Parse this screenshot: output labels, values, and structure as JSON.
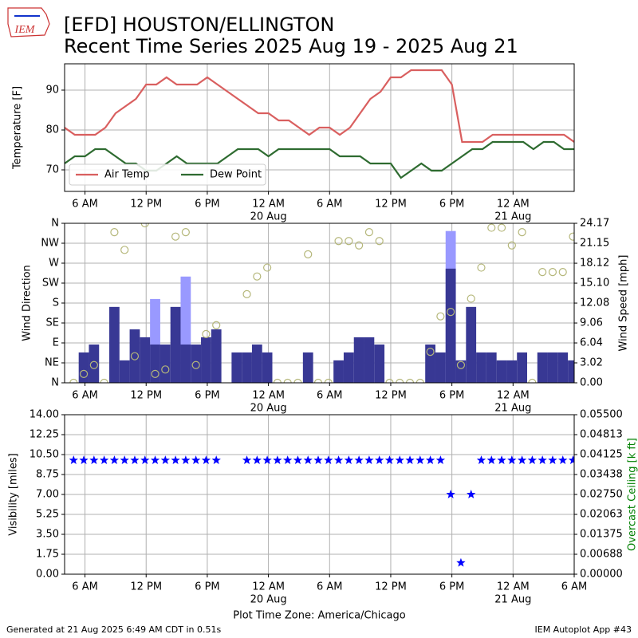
{
  "logo": "IEM",
  "footer": {
    "left": "Generated at 21 Aug 2025 6:49 AM CDT in 0.51s",
    "right": "IEM Autoplot App #43"
  },
  "chart_data": [
    {
      "type": "line",
      "title": "[EFD] HOUSTON/ELLINGTON",
      "subtitle": "Recent Time Series 2025 Aug 19 - 2025 Aug 21",
      "ylabel": "Temperature [F]",
      "grid": true,
      "legend": "lower left",
      "xlim": [
        "2025-08-19T04:00",
        "2025-08-21T06:00"
      ],
      "xticks": [
        {
          "value": "2025-08-19T06:00",
          "label": "6 AM"
        },
        {
          "value": "2025-08-19T12:00",
          "label": "12 PM"
        },
        {
          "value": "2025-08-19T18:00",
          "label": "6 PM"
        },
        {
          "value": "2025-08-20T00:00",
          "label": "12 AM"
        },
        {
          "value": "2025-08-20T06:00",
          "label": "6 AM"
        },
        {
          "value": "2025-08-20T12:00",
          "label": "12 PM"
        },
        {
          "value": "2025-08-20T18:00",
          "label": "6 PM"
        },
        {
          "value": "2025-08-21T00:00",
          "label": "12 AM"
        }
      ],
      "xtick_dates": [
        {
          "value": "2025-08-20T00:00",
          "label": "20 Aug"
        },
        {
          "value": "2025-08-21T00:00",
          "label": "21 Aug"
        }
      ],
      "ylim": [
        64.6,
        96.6
      ],
      "yticks": [
        70,
        80,
        90
      ],
      "x": [
        "2025-08-19T04:00",
        "2025-08-19T05:00",
        "2025-08-19T06:00",
        "2025-08-19T07:00",
        "2025-08-19T08:00",
        "2025-08-19T09:00",
        "2025-08-19T10:00",
        "2025-08-19T11:00",
        "2025-08-19T12:00",
        "2025-08-19T13:00",
        "2025-08-19T14:00",
        "2025-08-19T15:00",
        "2025-08-19T16:00",
        "2025-08-19T17:00",
        "2025-08-19T18:00",
        "2025-08-19T19:00",
        "2025-08-19T20:00",
        "2025-08-19T21:00",
        "2025-08-19T22:00",
        "2025-08-19T23:00",
        "2025-08-20T00:00",
        "2025-08-20T01:00",
        "2025-08-20T02:00",
        "2025-08-20T03:00",
        "2025-08-20T04:00",
        "2025-08-20T05:00",
        "2025-08-20T06:00",
        "2025-08-20T07:00",
        "2025-08-20T08:00",
        "2025-08-20T09:00",
        "2025-08-20T10:00",
        "2025-08-20T11:00",
        "2025-08-20T12:00",
        "2025-08-20T13:00",
        "2025-08-20T14:00",
        "2025-08-20T15:00",
        "2025-08-20T16:00",
        "2025-08-20T17:00",
        "2025-08-20T18:00",
        "2025-08-20T19:00",
        "2025-08-20T20:00",
        "2025-08-20T21:00",
        "2025-08-20T22:00",
        "2025-08-20T23:00",
        "2025-08-21T00:00",
        "2025-08-21T01:00",
        "2025-08-21T02:00",
        "2025-08-21T03:00",
        "2025-08-21T04:00",
        "2025-08-21T05:00",
        "2025-08-21T06:00"
      ],
      "series": [
        {
          "name": "Air Temp",
          "color": "#d95f5f",
          "values": [
            80.6,
            78.8,
            78.8,
            78.8,
            80.6,
            84.2,
            86,
            87.8,
            91.4,
            91.4,
            93.2,
            91.4,
            91.4,
            91.4,
            93.2,
            91.4,
            89.6,
            87.8,
            86,
            84.2,
            84.2,
            82.4,
            82.4,
            80.6,
            78.8,
            80.6,
            80.6,
            78.8,
            80.6,
            84.2,
            87.8,
            89.6,
            93.2,
            93.2,
            95,
            95,
            95,
            95,
            91.4,
            77,
            77,
            77,
            78.8,
            78.8,
            78.8,
            78.8,
            78.8,
            78.8,
            78.8,
            78.8,
            77
          ]
        },
        {
          "name": "Dew Point",
          "color": "#2e6b30",
          "values": [
            71.6,
            73.4,
            73.4,
            75.2,
            75.2,
            73.4,
            71.6,
            71.6,
            69.8,
            69.8,
            71.6,
            73.4,
            71.6,
            71.6,
            71.6,
            71.6,
            73.4,
            75.2,
            75.2,
            75.2,
            73.4,
            75.2,
            75.2,
            75.2,
            75.2,
            75.2,
            75.2,
            73.4,
            73.4,
            73.4,
            71.6,
            71.6,
            71.6,
            68,
            69.8,
            71.6,
            69.8,
            69.8,
            71.6,
            73.4,
            75.2,
            75.2,
            77,
            77,
            77,
            77,
            75.2,
            77,
            77,
            75.2,
            75.2
          ]
        }
      ]
    },
    {
      "type": "combo",
      "ylabel": "Wind Direction",
      "y2label": "Wind Speed [mph]",
      "grid": true,
      "xlim": [
        "2025-08-19T04:00",
        "2025-08-21T06:00"
      ],
      "xticks": [
        {
          "value": "2025-08-19T06:00",
          "label": "6 AM"
        },
        {
          "value": "2025-08-19T12:00",
          "label": "12 PM"
        },
        {
          "value": "2025-08-19T18:00",
          "label": "6 PM"
        },
        {
          "value": "2025-08-20T00:00",
          "label": "12 AM"
        },
        {
          "value": "2025-08-20T06:00",
          "label": "6 AM"
        },
        {
          "value": "2025-08-20T12:00",
          "label": "12 PM"
        },
        {
          "value": "2025-08-20T18:00",
          "label": "6 PM"
        },
        {
          "value": "2025-08-21T00:00",
          "label": "12 AM"
        }
      ],
      "xtick_dates": [
        {
          "value": "2025-08-20T00:00",
          "label": "20 Aug"
        },
        {
          "value": "2025-08-21T00:00",
          "label": "21 Aug"
        }
      ],
      "ylim": [
        0,
        360
      ],
      "yticks": [
        {
          "value": 0,
          "label": "N"
        },
        {
          "value": 45,
          "label": "NE"
        },
        {
          "value": 90,
          "label": "E"
        },
        {
          "value": 135,
          "label": "SE"
        },
        {
          "value": 180,
          "label": "S"
        },
        {
          "value": 225,
          "label": "SW"
        },
        {
          "value": 270,
          "label": "W"
        },
        {
          "value": 315,
          "label": "NW"
        },
        {
          "value": 360,
          "label": "N"
        }
      ],
      "y2lim": [
        0,
        24.17
      ],
      "y2ticks": [
        {
          "value": 0,
          "label": "0.00"
        },
        {
          "value": 3.02,
          "label": "3.02"
        },
        {
          "value": 6.04,
          "label": "6.04"
        },
        {
          "value": 9.06,
          "label": "9.06"
        },
        {
          "value": 12.08,
          "label": "12.08"
        },
        {
          "value": 15.1,
          "label": "15.10"
        },
        {
          "value": 18.12,
          "label": "18.12"
        },
        {
          "value": 21.15,
          "label": "21.15"
        },
        {
          "value": 24.17,
          "label": "24.17"
        }
      ],
      "x": [
        "2025-08-19T04:53",
        "2025-08-19T05:53",
        "2025-08-19T06:53",
        "2025-08-19T07:53",
        "2025-08-19T08:53",
        "2025-08-19T09:53",
        "2025-08-19T10:53",
        "2025-08-19T11:53",
        "2025-08-19T12:53",
        "2025-08-19T13:53",
        "2025-08-19T14:53",
        "2025-08-19T15:53",
        "2025-08-19T16:53",
        "2025-08-19T17:53",
        "2025-08-19T18:53",
        "2025-08-19T19:53",
        "2025-08-19T20:53",
        "2025-08-19T21:53",
        "2025-08-19T22:53",
        "2025-08-19T23:53",
        "2025-08-20T00:53",
        "2025-08-20T01:53",
        "2025-08-20T02:53",
        "2025-08-20T03:53",
        "2025-08-20T04:53",
        "2025-08-20T05:53",
        "2025-08-20T06:53",
        "2025-08-20T07:53",
        "2025-08-20T08:53",
        "2025-08-20T09:53",
        "2025-08-20T10:53",
        "2025-08-20T11:53",
        "2025-08-20T12:53",
        "2025-08-20T13:53",
        "2025-08-20T14:53",
        "2025-08-20T15:53",
        "2025-08-20T16:53",
        "2025-08-20T17:53",
        "2025-08-20T18:53",
        "2025-08-20T19:53",
        "2025-08-20T20:53",
        "2025-08-20T21:53",
        "2025-08-20T22:53",
        "2025-08-20T23:53",
        "2025-08-21T00:53",
        "2025-08-21T01:53",
        "2025-08-21T02:53",
        "2025-08-21T03:53",
        "2025-08-21T04:53",
        "2025-08-21T05:53"
      ],
      "series": [
        {
          "kind": "bar",
          "axis": "y2",
          "color": "#9999ff",
          "values": [
            null,
            null,
            null,
            null,
            null,
            null,
            null,
            null,
            12.7,
            null,
            null,
            16.1,
            null,
            null,
            null,
            null,
            null,
            null,
            null,
            null,
            null,
            null,
            null,
            null,
            null,
            null,
            null,
            null,
            null,
            null,
            null,
            null,
            null,
            null,
            null,
            null,
            null,
            23,
            null,
            null,
            null,
            null,
            null,
            null,
            null,
            null,
            null,
            null,
            null,
            null
          ]
        },
        {
          "kind": "bar",
          "axis": "y2",
          "color": "#383894",
          "values": [
            0,
            4.6,
            5.8,
            0,
            11.5,
            3.4,
            8.1,
            6.9,
            5.8,
            5.8,
            11.5,
            5.8,
            5.8,
            6.9,
            8.1,
            0,
            4.6,
            4.6,
            5.8,
            4.6,
            0,
            0,
            0,
            4.6,
            0,
            0,
            3.4,
            4.6,
            6.9,
            6.9,
            5.8,
            0,
            0,
            0,
            0,
            5.8,
            4.6,
            17.3,
            3.4,
            11.5,
            4.6,
            4.6,
            3.4,
            3.4,
            4.6,
            0,
            4.6,
            4.6,
            4.6,
            3.4
          ]
        },
        {
          "kind": "scatter",
          "color": "#b5b77a",
          "values": [
            0,
            20,
            40,
            0,
            340,
            300,
            60,
            360,
            20,
            30,
            330,
            340,
            40,
            110,
            130,
            null,
            null,
            200,
            240,
            260,
            0,
            0,
            0,
            290,
            0,
            0,
            320,
            320,
            310,
            340,
            320,
            0,
            0,
            0,
            0,
            70,
            150,
            160,
            40,
            190,
            260,
            350,
            350,
            310,
            340,
            0,
            250,
            250,
            250,
            330
          ]
        }
      ]
    },
    {
      "type": "combo",
      "ylabel": "Visibility [miles]",
      "y2label": "Overcast Ceiling [k ft]",
      "y2label_color": "#008000",
      "xlabel": "Plot Time Zone: America/Chicago",
      "grid": true,
      "xlim": [
        "2025-08-19T04:00",
        "2025-08-21T06:00"
      ],
      "xticks": [
        {
          "value": "2025-08-19T06:00",
          "label": "6 AM"
        },
        {
          "value": "2025-08-19T12:00",
          "label": "12 PM"
        },
        {
          "value": "2025-08-19T18:00",
          "label": "6 PM"
        },
        {
          "value": "2025-08-20T00:00",
          "label": "12 AM"
        },
        {
          "value": "2025-08-20T06:00",
          "label": "6 AM"
        },
        {
          "value": "2025-08-20T12:00",
          "label": "12 PM"
        },
        {
          "value": "2025-08-20T18:00",
          "label": "6 PM"
        },
        {
          "value": "2025-08-21T00:00",
          "label": "12 AM"
        },
        {
          "value": "2025-08-21T06:00",
          "label": "6 AM"
        }
      ],
      "xtick_dates": [
        {
          "value": "2025-08-20T00:00",
          "label": "20 Aug"
        },
        {
          "value": "2025-08-21T00:00",
          "label": "21 Aug"
        }
      ],
      "ylim": [
        0,
        14
      ],
      "yticks": [
        {
          "value": 0,
          "label": "0.00"
        },
        {
          "value": 1.75,
          "label": "1.75"
        },
        {
          "value": 3.5,
          "label": "3.50"
        },
        {
          "value": 5.25,
          "label": "5.25"
        },
        {
          "value": 7,
          "label": "7.00"
        },
        {
          "value": 8.75,
          "label": "8.75"
        },
        {
          "value": 10.5,
          "label": "10.50"
        },
        {
          "value": 12.25,
          "label": "12.25"
        },
        {
          "value": 14,
          "label": "14.00"
        }
      ],
      "y2lim": [
        0,
        0.055
      ],
      "y2ticks": [
        {
          "value": 0,
          "label": "0.00000"
        },
        {
          "value": 0.006875,
          "label": "0.00688"
        },
        {
          "value": 0.01375,
          "label": "0.01375"
        },
        {
          "value": 0.020625,
          "label": "0.02063"
        },
        {
          "value": 0.0275,
          "label": "0.02750"
        },
        {
          "value": 0.034375,
          "label": "0.03438"
        },
        {
          "value": 0.04125,
          "label": "0.04125"
        },
        {
          "value": 0.048125,
          "label": "0.04813"
        },
        {
          "value": 0.055,
          "label": "0.05500"
        }
      ],
      "x": [
        "2025-08-19T04:53",
        "2025-08-19T05:53",
        "2025-08-19T06:53",
        "2025-08-19T07:53",
        "2025-08-19T08:53",
        "2025-08-19T09:53",
        "2025-08-19T10:53",
        "2025-08-19T11:53",
        "2025-08-19T12:53",
        "2025-08-19T13:53",
        "2025-08-19T14:53",
        "2025-08-19T15:53",
        "2025-08-19T16:53",
        "2025-08-19T17:53",
        "2025-08-19T18:53",
        "2025-08-19T19:53",
        "2025-08-19T20:53",
        "2025-08-19T21:53",
        "2025-08-19T22:53",
        "2025-08-19T23:53",
        "2025-08-20T00:53",
        "2025-08-20T01:53",
        "2025-08-20T02:53",
        "2025-08-20T03:53",
        "2025-08-20T04:53",
        "2025-08-20T05:53",
        "2025-08-20T06:53",
        "2025-08-20T07:53",
        "2025-08-20T08:53",
        "2025-08-20T09:53",
        "2025-08-20T10:53",
        "2025-08-20T11:53",
        "2025-08-20T12:53",
        "2025-08-20T13:53",
        "2025-08-20T14:53",
        "2025-08-20T15:53",
        "2025-08-20T16:53",
        "2025-08-20T17:53",
        "2025-08-20T18:53",
        "2025-08-20T19:53",
        "2025-08-20T20:53",
        "2025-08-20T21:53",
        "2025-08-20T22:53",
        "2025-08-20T23:53",
        "2025-08-21T00:53",
        "2025-08-21T01:53",
        "2025-08-21T02:53",
        "2025-08-21T03:53",
        "2025-08-21T04:53",
        "2025-08-21T05:53"
      ],
      "series": [
        {
          "kind": "star",
          "color": "#0000ff",
          "values": [
            10,
            10,
            10,
            10,
            10,
            10,
            10,
            10,
            10,
            10,
            10,
            10,
            10,
            10,
            10,
            null,
            null,
            10,
            10,
            10,
            10,
            10,
            10,
            10,
            10,
            10,
            10,
            10,
            10,
            10,
            10,
            10,
            10,
            10,
            10,
            10,
            10,
            7,
            1,
            7,
            10,
            10,
            10,
            10,
            10,
            10,
            10,
            10,
            10,
            10
          ]
        }
      ]
    }
  ]
}
